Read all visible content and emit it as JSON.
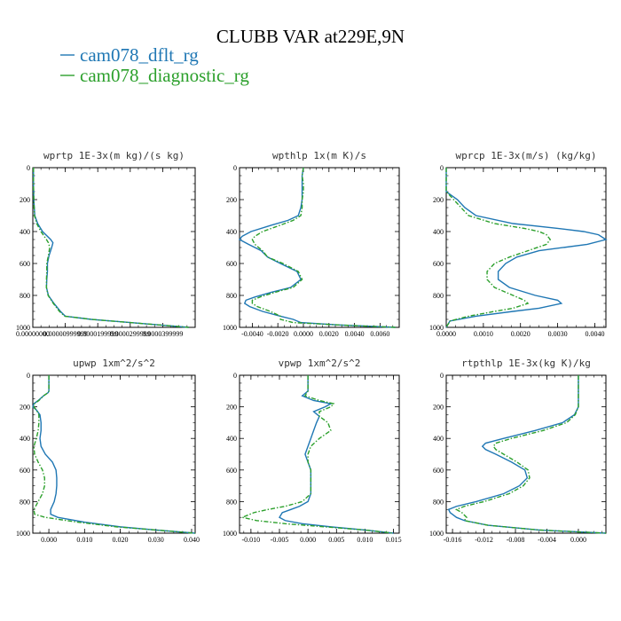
{
  "title": "CLUBB VAR at229E,9N",
  "legend": [
    {
      "label": "cam078_dflt_rg",
      "color": "#1f77b4"
    },
    {
      "label": "cam078_diagnostic_rg",
      "color": "#2ca02c"
    }
  ],
  "chart_data": [
    {
      "type": "line",
      "title": "wprtp  1E-3x(m kg)/(s kg)",
      "xlim": [
        0,
        5e-05
      ],
      "ylim": [
        1000,
        0
      ],
      "xticks": [
        0,
        1e-05,
        2e-05,
        3e-05,
        4e-05
      ],
      "xticklabels": [
        "0.00000000",
        "0.00000999999",
        "0.0000199999",
        "0.0000299999",
        "0.0000399999"
      ],
      "yticks": [
        0,
        200,
        400,
        600,
        800,
        1000
      ],
      "yticklabels": [
        "0",
        "200",
        "400",
        "600",
        "800",
        "1000"
      ],
      "series": [
        {
          "name": "cam078_dflt_rg",
          "p": [
            0,
            100,
            200,
            300,
            350,
            400,
            450,
            470,
            500,
            550,
            600,
            650,
            700,
            750,
            800,
            850,
            900,
            930,
            950,
            970,
            990,
            1000
          ],
          "x": [
            2e-07,
            2e-07,
            3e-07,
            6e-07,
            1.5e-06,
            3e-06,
            5.5e-06,
            6.2e-06,
            5.8e-06,
            5e-06,
            4.5e-06,
            4.5e-06,
            4.3e-06,
            4.2e-06,
            4.8e-06,
            6.5e-06,
            8.5e-06,
            1e-05,
            1.8e-05,
            3e-05,
            4.2e-05,
            4.8e-05
          ]
        },
        {
          "name": "cam078_diagnostic_rg",
          "p": [
            0,
            100,
            200,
            300,
            350,
            400,
            450,
            470,
            500,
            550,
            600,
            650,
            700,
            750,
            800,
            850,
            900,
            930,
            950,
            970,
            990,
            1000
          ],
          "x": [
            2e-07,
            2e-07,
            3e-07,
            5e-07,
            1.2e-06,
            2.5e-06,
            4.2e-06,
            4.8e-06,
            5.2e-06,
            4.8e-06,
            4.3e-06,
            4.3e-06,
            4.2e-06,
            4.2e-06,
            4.7e-06,
            6.3e-06,
            8.2e-06,
            9.8e-06,
            1.8e-05,
            3e-05,
            4.2e-05,
            4.8e-05
          ]
        }
      ]
    },
    {
      "type": "line",
      "title": "wpthlp  1x(m K)/s",
      "xlim": [
        -0.005,
        0.0075
      ],
      "ylim": [
        1000,
        0
      ],
      "xticks": [
        -0.004,
        -0.002,
        0,
        0.002,
        0.004,
        0.006
      ],
      "xticklabels": [
        "-0.0040",
        "-0.0020",
        "0.0000",
        "0.0020",
        "0.0040",
        "0.0060"
      ],
      "yticks": [
        0,
        200,
        400,
        600,
        800,
        1000
      ],
      "yticklabels": [
        "0",
        "200",
        "400",
        "600",
        "800",
        "1000"
      ],
      "series": [
        {
          "name": "cam078_dflt_rg",
          "p": [
            0,
            50,
            100,
            150,
            200,
            250,
            300,
            330,
            360,
            400,
            430,
            450,
            480,
            520,
            560,
            600,
            650,
            700,
            750,
            780,
            810,
            830,
            850,
            870,
            900,
            930,
            950,
            970,
            985,
            1000
          ],
          "x": [
            0,
            -0.0001,
            -0.0001,
            -0.0001,
            -0.0001,
            -0.0002,
            -0.0004,
            -0.0012,
            -0.0025,
            -0.0041,
            -0.0048,
            -0.005,
            -0.0043,
            -0.0033,
            -0.0028,
            -0.0018,
            -0.0005,
            -0.0002,
            -0.001,
            -0.0025,
            -0.0038,
            -0.0045,
            -0.0046,
            -0.0042,
            -0.0032,
            -0.0018,
            -0.0008,
            -0.0002,
            0.0028,
            0.0072
          ]
        },
        {
          "name": "cam078_diagnostic_rg",
          "p": [
            0,
            50,
            100,
            150,
            200,
            250,
            300,
            330,
            360,
            400,
            430,
            450,
            480,
            520,
            560,
            600,
            650,
            700,
            750,
            780,
            810,
            830,
            850,
            870,
            900,
            930,
            950,
            970,
            985,
            1000
          ],
          "x": [
            0,
            -0.0001,
            0,
            0,
            -0.0001,
            -0.0001,
            -0.0002,
            -0.0008,
            -0.0018,
            -0.0032,
            -0.0038,
            -0.004,
            -0.0038,
            -0.0032,
            -0.0028,
            -0.0016,
            -0.0004,
            -0.0001,
            -0.0008,
            -0.0022,
            -0.0034,
            -0.004,
            -0.004,
            -0.0036,
            -0.0026,
            -0.0018,
            -0.0018,
            -0.0008,
            0.0028,
            0.0072
          ]
        }
      ]
    },
    {
      "type": "line",
      "title": "wprcp  1E-3x(m/s) (kg/kg)",
      "xlim": [
        0,
        0.0043
      ],
      "ylim": [
        1000,
        0
      ],
      "xticks": [
        0,
        0.001,
        0.002,
        0.003,
        0.004
      ],
      "xticklabels": [
        "0.0000",
        "0.0010",
        "0.0020",
        "0.0030",
        "0.0040"
      ],
      "yticks": [
        0,
        200,
        400,
        600,
        800,
        1000
      ],
      "yticklabels": [
        "0",
        "200",
        "400",
        "600",
        "800",
        "1000"
      ],
      "series": [
        {
          "name": "cam078_dflt_rg",
          "p": [
            0,
            100,
            150,
            200,
            250,
            300,
            350,
            380,
            400,
            420,
            450,
            480,
            520,
            560,
            600,
            650,
            700,
            750,
            800,
            830,
            850,
            880,
            900,
            930,
            960,
            1000
          ],
          "x": [
            0,
            0,
            0,
            0.0003,
            0.0005,
            0.0008,
            0.0018,
            0.003,
            0.0037,
            0.0041,
            0.0043,
            0.0038,
            0.0025,
            0.0019,
            0.0016,
            0.0014,
            0.0014,
            0.0017,
            0.0024,
            0.003,
            0.0031,
            0.0025,
            0.0018,
            0.0008,
            0.0001,
            0
          ]
        },
        {
          "name": "cam078_diagnostic_rg",
          "p": [
            0,
            100,
            150,
            200,
            250,
            300,
            350,
            380,
            400,
            420,
            450,
            480,
            520,
            560,
            600,
            650,
            700,
            750,
            800,
            830,
            850,
            880,
            900,
            930,
            960,
            1000
          ],
          "x": [
            0,
            0,
            0,
            0.0002,
            0.0004,
            0.0006,
            0.0013,
            0.0021,
            0.0025,
            0.0027,
            0.0028,
            0.0027,
            0.0022,
            0.0017,
            0.0013,
            0.0011,
            0.0011,
            0.0013,
            0.0018,
            0.0021,
            0.0022,
            0.0018,
            0.0013,
            0.0006,
            0.0001,
            0
          ]
        }
      ]
    },
    {
      "type": "line",
      "title": "upwp  1xm^2/s^2",
      "xlim": [
        -0.0045,
        0.041
      ],
      "ylim": [
        1000,
        0
      ],
      "xticks": [
        0,
        0.01,
        0.02,
        0.03,
        0.04
      ],
      "xticklabels": [
        "0.000",
        "0.010",
        "0.020",
        "0.030",
        "0.040"
      ],
      "yticks": [
        0,
        200,
        400,
        600,
        800,
        1000
      ],
      "yticklabels": [
        "0",
        "200",
        "400",
        "600",
        "800",
        "1000"
      ],
      "series": [
        {
          "name": "cam078_dflt_rg",
          "p": [
            0,
            50,
            100,
            110,
            130,
            160,
            180,
            200,
            220,
            250,
            300,
            350,
            400,
            450,
            500,
            550,
            600,
            650,
            700,
            750,
            800,
            850,
            880,
            900,
            930,
            960,
            980,
            1000
          ],
          "x": [
            0,
            0,
            0,
            -0.0002,
            -0.0015,
            -0.003,
            -0.0042,
            -0.0045,
            -0.0035,
            -0.0025,
            -0.0022,
            -0.0022,
            -0.0025,
            -0.0022,
            -0.001,
            0.001,
            0.002,
            0.0022,
            0.0022,
            0.002,
            0.0015,
            0.0005,
            0.0005,
            0.0025,
            0.01,
            0.02,
            0.03,
            0.041
          ]
        },
        {
          "name": "cam078_diagnostic_rg",
          "p": [
            0,
            50,
            100,
            110,
            130,
            160,
            180,
            200,
            220,
            250,
            300,
            350,
            400,
            450,
            500,
            550,
            600,
            650,
            700,
            750,
            800,
            850,
            880,
            900,
            930,
            960,
            980,
            1000
          ],
          "x": [
            0,
            0,
            0,
            -0.0002,
            -0.0015,
            -0.0028,
            -0.004,
            -0.0042,
            -0.0035,
            -0.0028,
            -0.0028,
            -0.003,
            -0.0035,
            -0.0042,
            -0.004,
            -0.003,
            -0.0018,
            -0.0012,
            -0.0012,
            -0.0018,
            -0.003,
            -0.0042,
            -0.004,
            -0.001,
            0.008,
            0.019,
            0.03,
            0.041
          ]
        }
      ]
    },
    {
      "type": "line",
      "title": "vpwp  1xm^2/s^2",
      "xlim": [
        -0.012,
        0.016
      ],
      "ylim": [
        1000,
        0
      ],
      "xticks": [
        -0.01,
        -0.005,
        0,
        0.005,
        0.01,
        0.015
      ],
      "xticklabels": [
        "-0.010",
        "-0.005",
        "0.000",
        "0.005",
        "0.010",
        "0.015"
      ],
      "yticks": [
        0,
        200,
        400,
        600,
        800,
        1000
      ],
      "yticklabels": [
        "0",
        "200",
        "400",
        "600",
        "800",
        "1000"
      ],
      "series": [
        {
          "name": "cam078_dflt_rg",
          "p": [
            0,
            50,
            100,
            130,
            160,
            180,
            200,
            230,
            260,
            300,
            350,
            400,
            450,
            500,
            550,
            600,
            650,
            700,
            750,
            800,
            830,
            850,
            870,
            900,
            920,
            940,
            960,
            980,
            1000
          ],
          "x": [
            0,
            0,
            0,
            -0.001,
            0.001,
            0.004,
            0.003,
            0.001,
            0.002,
            0.0015,
            0.001,
            0.0005,
            0,
            -0.0005,
            0,
            0.0005,
            0.0005,
            0.0005,
            0.0005,
            0,
            -0.0015,
            -0.003,
            -0.0045,
            -0.005,
            -0.004,
            -0.001,
            0.004,
            0.01,
            0.015
          ]
        },
        {
          "name": "cam078_diagnostic_rg",
          "p": [
            0,
            50,
            100,
            130,
            160,
            180,
            200,
            230,
            260,
            300,
            350,
            400,
            450,
            500,
            550,
            600,
            650,
            700,
            750,
            800,
            830,
            850,
            870,
            900,
            920,
            940,
            960,
            980,
            1000
          ],
          "x": [
            0,
            0,
            0,
            -0.0005,
            0.002,
            0.0045,
            0.004,
            0.002,
            0.002,
            0.0035,
            0.004,
            0.002,
            0.0005,
            0,
            0,
            0.0005,
            0.0005,
            0.0005,
            0.0005,
            -0.001,
            -0.004,
            -0.007,
            -0.0095,
            -0.0115,
            -0.009,
            -0.004,
            0.003,
            0.01,
            0.015
          ]
        }
      ]
    },
    {
      "type": "line",
      "title": "rtpthlp  1E-3x(kg K)/kg",
      "xlim": [
        -0.0168,
        0.0035
      ],
      "ylim": [
        1000,
        0
      ],
      "xticks": [
        -0.016,
        -0.012,
        -0.008,
        -0.004,
        0
      ],
      "xticklabels": [
        "-0.016",
        "-0.012",
        "-0.008",
        "-0.004",
        "0.000"
      ],
      "yticks": [
        0,
        200,
        400,
        600,
        800,
        1000
      ],
      "yticklabels": [
        "0",
        "200",
        "400",
        "600",
        "800",
        "1000"
      ],
      "series": [
        {
          "name": "cam078_dflt_rg",
          "p": [
            0,
            100,
            150,
            200,
            250,
            300,
            350,
            400,
            430,
            450,
            470,
            500,
            550,
            600,
            650,
            700,
            750,
            800,
            830,
            850,
            870,
            900,
            920,
            950,
            980,
            1000
          ],
          "x": [
            0,
            0,
            0,
            0,
            -0.0005,
            -0.002,
            -0.0055,
            -0.0095,
            -0.0118,
            -0.0122,
            -0.0118,
            -0.0105,
            -0.0085,
            -0.0068,
            -0.0065,
            -0.0075,
            -0.0095,
            -0.013,
            -0.0155,
            -0.0165,
            -0.0163,
            -0.0155,
            -0.0145,
            -0.0115,
            -0.005,
            0.0035
          ]
        },
        {
          "name": "cam078_diagnostic_rg",
          "p": [
            0,
            100,
            150,
            200,
            250,
            300,
            350,
            400,
            430,
            450,
            470,
            500,
            550,
            600,
            650,
            700,
            750,
            800,
            830,
            850,
            870,
            900,
            920,
            950,
            980,
            1000
          ],
          "x": [
            0,
            0,
            0,
            0,
            -0.0004,
            -0.0015,
            -0.0045,
            -0.0085,
            -0.0105,
            -0.0108,
            -0.0105,
            -0.0095,
            -0.0078,
            -0.0064,
            -0.0062,
            -0.007,
            -0.0088,
            -0.012,
            -0.0145,
            -0.0155,
            -0.0148,
            -0.0142,
            -0.0145,
            -0.0115,
            -0.005,
            0.0035
          ]
        }
      ]
    }
  ]
}
